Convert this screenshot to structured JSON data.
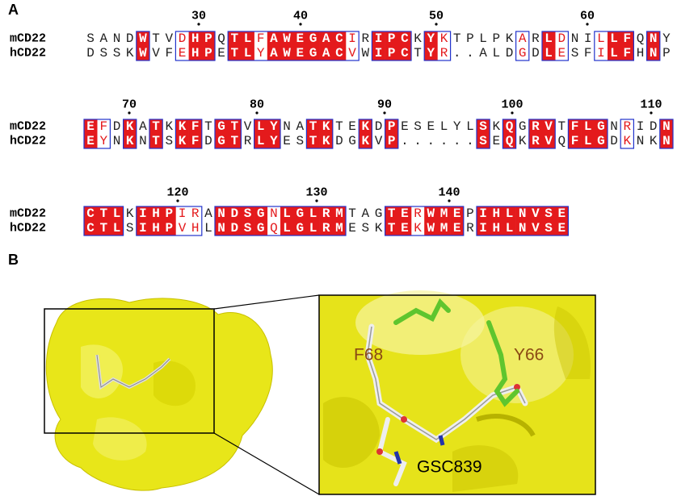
{
  "panels": [
    {
      "label": "A",
      "blocks": [
        {
          "ruler": [
            30,
            40,
            50,
            60
          ],
          "rows": [
            {
              "name": "mCD22",
              "sequence": "SANDWTVDHPQTLFAWEGACIRIPCKYKTPLPKARLDNILLFQNY"
            },
            {
              "name": "hCD22",
              "sequence": "DSSKWVFEHPETLYAWEGACVWIPCTYR..ALDGDLESFILFHNP"
            }
          ]
        },
        {
          "ruler": [
            70,
            80,
            90,
            100,
            110
          ],
          "rows": [
            {
              "name": "mCD22",
              "sequence": "EFDKATKKFTGTVLYNATKTEKDPESELYLSKQGRVTFLGNRIDN"
            },
            {
              "name": "hCD22",
              "sequence": "EYNKNTSKFDGTRLYESTKDGKVP......SEQKRVQFLGDKNKN"
            }
          ]
        },
        {
          "ruler": [
            120,
            130,
            140
          ],
          "rows": [
            {
              "name": "mCD22",
              "sequence": "CTLKIHPIRANDSGNLGLRMTAGTERWMEPIHLNVSE"
            },
            {
              "name": "hCD22",
              "sequence": "CTLSIHPVHLNDSGQLGLRMESKTEKWMERIHLNVSE"
            }
          ]
        }
      ]
    },
    {
      "label": "B",
      "annotations": [
        "F68",
        "Y66",
        "GSC839"
      ]
    }
  ]
}
